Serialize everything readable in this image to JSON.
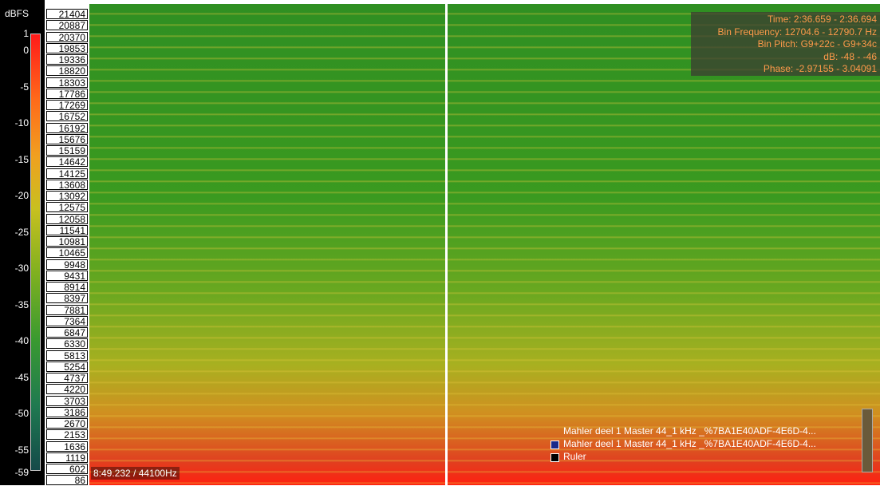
{
  "colorbar": {
    "title": "dBFS",
    "labels": [
      "1",
      "0",
      "-5",
      "-10",
      "-15",
      "-20",
      "-25",
      "-30",
      "-35",
      "-40",
      "-45",
      "-50",
      "-55",
      "-59"
    ]
  },
  "frequency_axis": {
    "labels": [
      "21404",
      "20887",
      "20370",
      "19853",
      "19336",
      "18820",
      "18303",
      "17786",
      "17269",
      "16752",
      "16192",
      "15676",
      "15159",
      "14642",
      "14125",
      "13608",
      "13092",
      "12575",
      "12058",
      "11541",
      "10981",
      "10465",
      "9948",
      "9431",
      "8914",
      "8397",
      "7881",
      "7364",
      "6847",
      "6330",
      "5813",
      "5254",
      "4737",
      "4220",
      "3703",
      "3186",
      "2670",
      "2153",
      "1636",
      "1119",
      "602",
      "86"
    ]
  },
  "info": {
    "lines": [
      "Time: 2:36.659 - 2:36.694",
      "Bin Frequency: 12704.6 - 12790.7 Hz",
      "Bin Pitch: G9+22c - G9+34c",
      "dB: -48 - -46",
      "Phase: -2.97155 - 3.04091"
    ]
  },
  "legend": {
    "items": [
      "Mahler deel 1 Master 44_1 kHz _%7BA1E40ADF-4E6D-4...",
      "Mahler deel 1 Master 44_1 kHz _%7BA1E40ADF-4E6D-4...",
      "Ruler"
    ]
  },
  "status": "8:49.232 / 44100Hz"
}
